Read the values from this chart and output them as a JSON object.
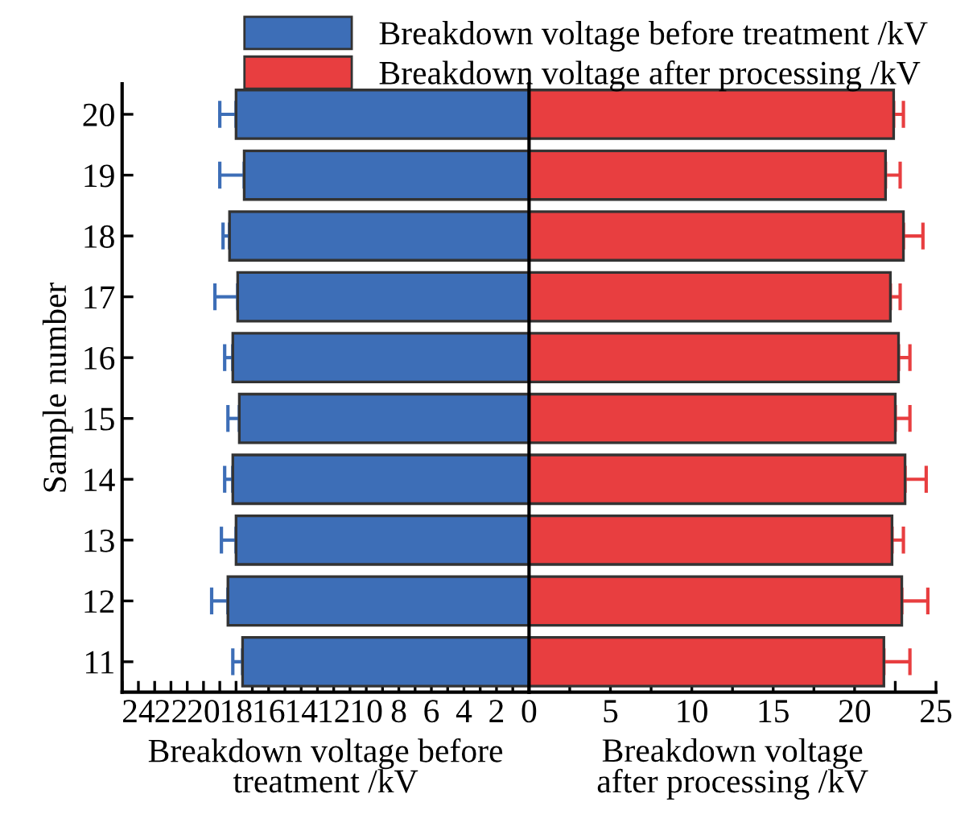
{
  "chart_data": [
    {
      "type": "bar",
      "orientation": "horizontal",
      "ylabel": "Sample number",
      "xlabel": "Breakdown voltage before\ntreatment /kV",
      "legend": "top",
      "categories": [
        "20",
        "19",
        "18",
        "17",
        "16",
        "15",
        "14",
        "13",
        "12",
        "11"
      ],
      "series": [
        {
          "name": "Breakdown voltage before treatment /kV",
          "color": "#3d6eb7",
          "values": [
            18.0,
            17.5,
            18.4,
            17.9,
            18.2,
            17.8,
            18.2,
            18.0,
            18.5,
            17.6
          ],
          "errors": [
            [
              18.0,
              19.0
            ],
            [
              17.5,
              19.0
            ],
            [
              18.4,
              18.8
            ],
            [
              17.9,
              19.3
            ],
            [
              18.2,
              18.7
            ],
            [
              17.8,
              18.5
            ],
            [
              18.2,
              18.7
            ],
            [
              18.0,
              18.9
            ],
            [
              18.5,
              19.5
            ],
            [
              17.6,
              18.2
            ]
          ]
        }
      ],
      "xlim": [
        25,
        0
      ],
      "xticks": [
        {
          "value": 0,
          "label": null
        },
        {
          "value": 1,
          "label": null
        },
        2,
        {
          "value": 3,
          "label": null
        },
        4,
        {
          "value": 5,
          "label": null
        },
        6,
        {
          "value": 7,
          "label": null
        },
        8,
        {
          "value": 9,
          "label": null
        },
        10,
        {
          "value": 11,
          "label": null
        },
        12,
        {
          "value": 13,
          "label": null
        },
        14,
        {
          "value": 15,
          "label": null
        },
        16,
        {
          "value": 17,
          "label": null
        },
        18,
        {
          "value": 19,
          "label": null
        },
        20,
        {
          "value": 21,
          "label": null
        },
        22,
        {
          "value": 23,
          "label": null
        },
        24,
        {
          "value": 25,
          "label": null
        }
      ],
      "grid": false
    },
    {
      "type": "bar",
      "orientation": "horizontal",
      "xlabel": "Breakdown voltage\nafter processing /kV",
      "legend": "top",
      "tick_labels": "x",
      "categories": [
        "20",
        "19",
        "18",
        "17",
        "16",
        "15",
        "14",
        "13",
        "12",
        "11"
      ],
      "series": [
        {
          "name": "Breakdown voltage after processing /kV",
          "color": "#e83e40",
          "values": [
            22.4,
            21.9,
            23.0,
            22.2,
            22.7,
            22.5,
            23.1,
            22.3,
            22.9,
            21.8
          ],
          "errors": [
            [
              22.4,
              23.0
            ],
            [
              21.9,
              22.8
            ],
            [
              23.0,
              24.2
            ],
            [
              22.2,
              22.8
            ],
            [
              22.7,
              23.4
            ],
            [
              22.5,
              23.4
            ],
            [
              23.1,
              24.4
            ],
            [
              22.3,
              23.0
            ],
            [
              22.9,
              24.5
            ],
            [
              21.8,
              23.4
            ]
          ]
        }
      ],
      "xlim": [
        0,
        25
      ],
      "xticks": [
        0,
        {
          "value": 2.5,
          "label": null
        },
        5,
        {
          "value": 7.5,
          "label": null
        },
        10,
        {
          "value": 12.5,
          "label": null
        },
        15,
        {
          "value": 17.5,
          "label": null
        },
        20,
        {
          "value": 22.5,
          "label": null
        },
        25
      ],
      "grid": false
    }
  ]
}
